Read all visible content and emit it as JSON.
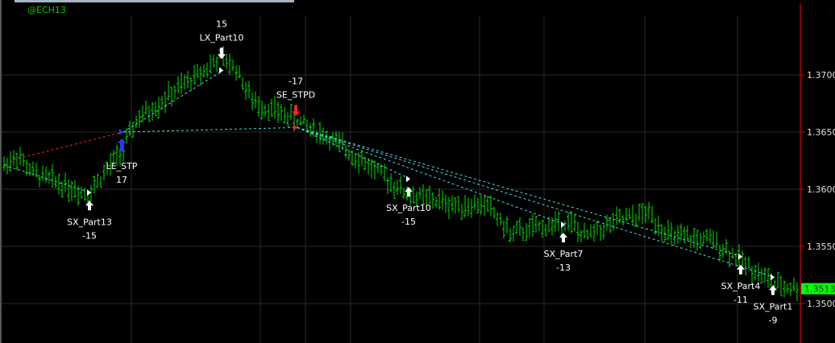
{
  "symbol": "@ECH13",
  "colors": {
    "bar": "#00e000",
    "grid": "#2a2a2a",
    "axis": "#ff0000",
    "last_price_bg": "#00ff00",
    "long_line": "#ff2020",
    "short_line": "#40e0e0",
    "text": "#ffffff"
  },
  "chart_data": {
    "type": "bar",
    "subtype": "ohlc-price-bars-with-strategy-trades",
    "yticks": [
      "1.3700",
      "1.3650",
      "1.3600",
      "1.3550",
      "1.3500"
    ],
    "ylim": [
      1.3478,
      1.3765
    ],
    "grid": true,
    "last_price": "1.3513",
    "price_path": [
      [
        0,
        1.3621
      ],
      [
        4,
        1.363
      ],
      [
        9,
        1.3614
      ],
      [
        26,
        1.3596
      ],
      [
        37,
        1.3635
      ],
      [
        41,
        1.366
      ],
      [
        67,
        1.3715
      ],
      [
        72,
        1.3706
      ],
      [
        77,
        1.3677
      ],
      [
        91,
        1.366
      ],
      [
        100,
        1.3646
      ],
      [
        111,
        1.3625
      ],
      [
        125,
        1.3596
      ],
      [
        140,
        1.3586
      ],
      [
        150,
        1.3586
      ],
      [
        157,
        1.3561
      ],
      [
        175,
        1.3572
      ],
      [
        180,
        1.3558
      ],
      [
        190,
        1.3572
      ],
      [
        200,
        1.3579
      ],
      [
        207,
        1.3558
      ],
      [
        220,
        1.3555
      ],
      [
        229,
        1.3537
      ],
      [
        240,
        1.3515
      ],
      [
        246,
        1.3514
      ]
    ],
    "trades": [
      {
        "label": "SX_Part13",
        "value": "-15",
        "bar": 27,
        "price": 1.3597,
        "side": "cover",
        "arrow": "up"
      },
      {
        "label": "LE_STP",
        "value": "17",
        "bar": 37,
        "price": 1.365,
        "side": "long-entry",
        "arrow": "up"
      },
      {
        "label": "LX_Part10",
        "value": "15",
        "bar": 68,
        "price": 1.3704,
        "side": "long-exit",
        "arrow": "down"
      },
      {
        "label": "SE_STPD",
        "value": "-17",
        "bar": 91,
        "price": 1.3654,
        "side": "short-entry",
        "arrow": "down"
      },
      {
        "label": "SX_Part10",
        "value": "-15",
        "bar": 126,
        "price": 1.3609,
        "side": "cover",
        "arrow": "up"
      },
      {
        "label": "SX_Part7",
        "value": "-13",
        "bar": 174,
        "price": 1.3569,
        "side": "cover",
        "arrow": "up"
      },
      {
        "label": "SX_Part4",
        "value": "-11",
        "bar": 229,
        "price": 1.3541,
        "side": "cover",
        "arrow": "up"
      },
      {
        "label": "SX_Part1",
        "value": "-9",
        "bar": 239,
        "price": 1.3523,
        "side": "cover",
        "arrow": "up"
      }
    ]
  }
}
